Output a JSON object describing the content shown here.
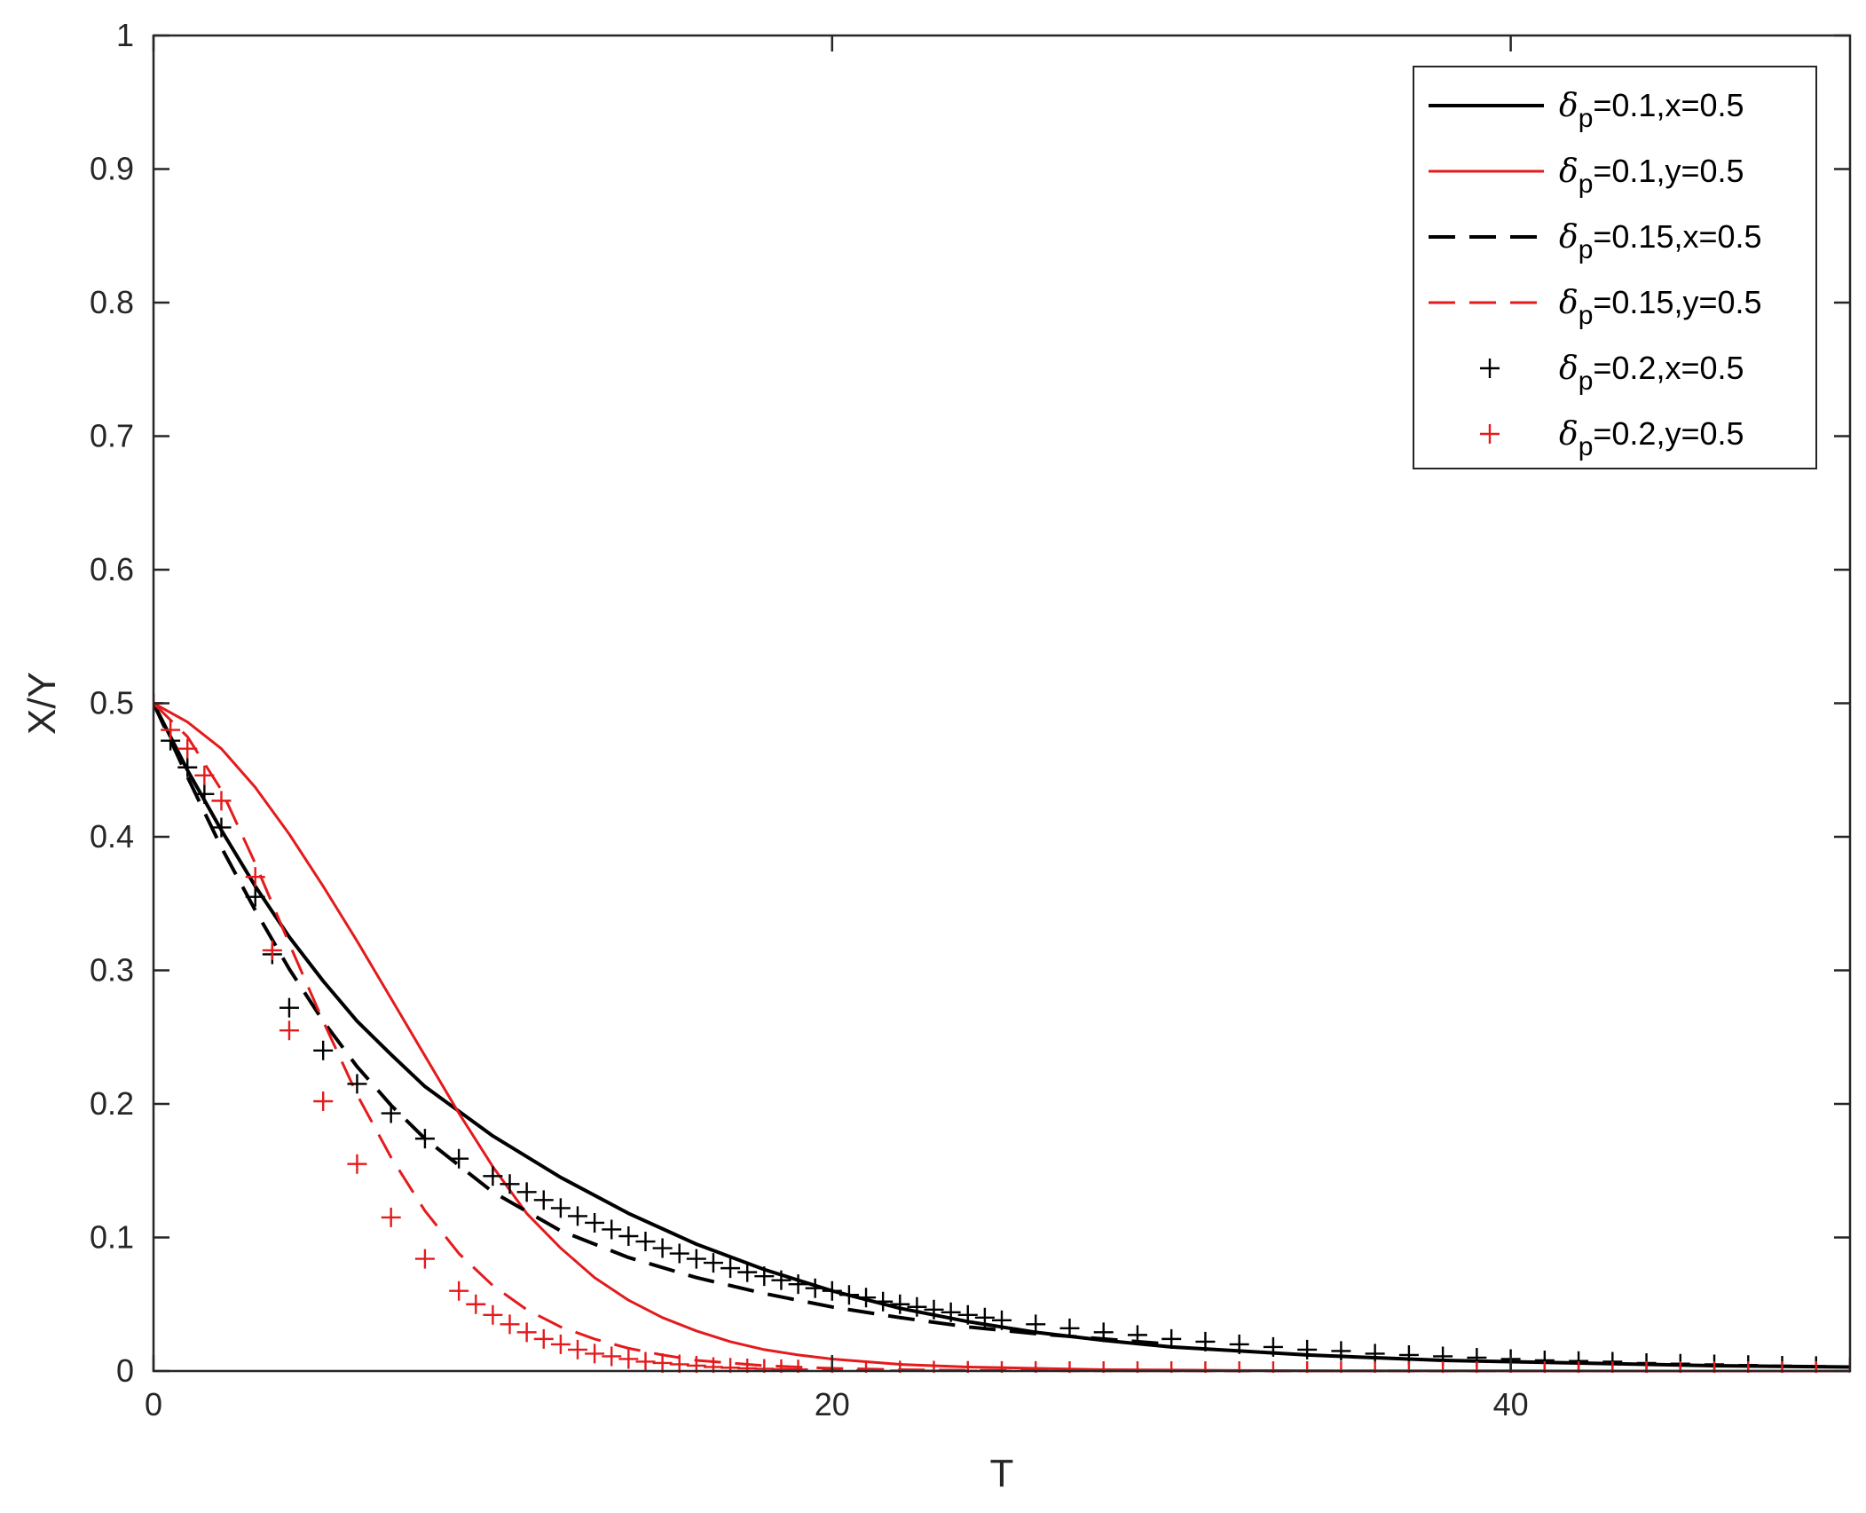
{
  "chart_data": {
    "type": "line",
    "xlabel": "T",
    "ylabel": "X/Y",
    "xlim": [
      0,
      50
    ],
    "ylim": [
      0,
      1
    ],
    "xticks": [
      0,
      20,
      40
    ],
    "yticks": [
      0,
      0.1,
      0.2,
      0.3,
      0.4,
      0.5,
      0.6,
      0.7,
      0.8,
      0.9,
      1
    ],
    "xtick_labels": [
      "0",
      "20",
      "40"
    ],
    "ytick_labels": [
      "0",
      "0.1",
      "0.2",
      "0.3",
      "0.4",
      "0.5",
      "0.6",
      "0.7",
      "0.8",
      "0.9",
      "1"
    ],
    "grid": false,
    "legend_position": "top-right",
    "series": [
      {
        "name": "δp=0.1,x=0.5",
        "legend_symbol": "δ",
        "legend_sub": "p",
        "legend_rest": "=0.1,x=0.5",
        "color": "#000000",
        "style": "solid",
        "x": [
          0,
          1,
          2,
          3,
          4,
          5,
          6,
          7,
          8,
          10,
          12,
          14,
          16,
          18,
          20,
          22,
          24,
          26,
          28,
          30,
          32,
          34,
          36,
          38,
          40,
          42,
          44,
          46,
          48,
          50
        ],
        "y": [
          0.5,
          0.45,
          0.405,
          0.363,
          0.325,
          0.292,
          0.262,
          0.237,
          0.213,
          0.176,
          0.145,
          0.118,
          0.095,
          0.076,
          0.06,
          0.047,
          0.037,
          0.029,
          0.023,
          0.018,
          0.015,
          0.012,
          0.01,
          0.008,
          0.007,
          0.006,
          0.005,
          0.004,
          0.0035,
          0.003
        ]
      },
      {
        "name": "δp=0.1,y=0.5",
        "legend_symbol": "δ",
        "legend_sub": "p",
        "legend_rest": "=0.1,y=0.5",
        "color": "#e41a1c",
        "style": "solid",
        "x": [
          0,
          1,
          2,
          3,
          4,
          5,
          6,
          7,
          8,
          9,
          10,
          11,
          12,
          13,
          14,
          15,
          16,
          17,
          18,
          19,
          20,
          22,
          24,
          26,
          28,
          30,
          32,
          35,
          40,
          45,
          50
        ],
        "y": [
          0.5,
          0.486,
          0.466,
          0.437,
          0.402,
          0.363,
          0.322,
          0.279,
          0.236,
          0.193,
          0.153,
          0.118,
          0.092,
          0.07,
          0.053,
          0.04,
          0.03,
          0.022,
          0.016,
          0.012,
          0.009,
          0.005,
          0.003,
          0.002,
          0.001,
          0.0007,
          0.0004,
          0.0002,
          0.0001,
          0.0,
          0.0
        ]
      },
      {
        "name": "δp=0.15,x=0.5",
        "legend_symbol": "δ",
        "legend_sub": "p",
        "legend_rest": "=0.15,x=0.5",
        "color": "#000000",
        "style": "dashed",
        "x": [
          0,
          1,
          2,
          3,
          4,
          5,
          6,
          7,
          8,
          10,
          12,
          14,
          16,
          18,
          20,
          22,
          24,
          26,
          28,
          30
        ],
        "y": [
          0.5,
          0.445,
          0.392,
          0.345,
          0.301,
          0.262,
          0.228,
          0.199,
          0.174,
          0.134,
          0.105,
          0.085,
          0.07,
          0.058,
          0.048,
          0.04,
          0.033,
          0.028,
          0.024,
          0.02
        ]
      },
      {
        "name": "δp=0.15,y=0.5",
        "legend_symbol": "δ",
        "legend_sub": "p",
        "legend_rest": "=0.15,y=0.5",
        "color": "#e41a1c",
        "style": "dashed",
        "x": [
          0,
          1,
          2,
          3,
          4,
          5,
          6,
          7,
          8,
          9,
          10,
          11,
          12,
          13,
          14,
          15,
          16,
          18,
          20,
          22,
          25,
          30,
          40,
          50
        ],
        "y": [
          0.5,
          0.475,
          0.435,
          0.38,
          0.32,
          0.262,
          0.207,
          0.16,
          0.12,
          0.088,
          0.064,
          0.046,
          0.033,
          0.024,
          0.017,
          0.012,
          0.008,
          0.004,
          0.002,
          0.001,
          0.0004,
          0.0001,
          0.0,
          0.0
        ]
      },
      {
        "name": "δp=0.2,x=0.5",
        "legend_symbol": "δ",
        "legend_sub": "p",
        "legend_rest": "=0.2,x=0.5",
        "color": "#000000",
        "style": "markers",
        "x": [
          0,
          0.5,
          1,
          1.5,
          2,
          3,
          3.5,
          4,
          5,
          6,
          7,
          8,
          9,
          10,
          10.5,
          11,
          11.5,
          12,
          12.5,
          13,
          13.5,
          14,
          14.5,
          15,
          15.5,
          16,
          16.5,
          17,
          17.5,
          18,
          18.5,
          19,
          19.5,
          20,
          20.5,
          21,
          21.5,
          22,
          22.5,
          23,
          23.5,
          24,
          24.5,
          25,
          26,
          27,
          28,
          29,
          30,
          31,
          32,
          33,
          34,
          35,
          36,
          37,
          38,
          39,
          40,
          41,
          42,
          43,
          44,
          45,
          46,
          47,
          48,
          49,
          50
        ],
        "y": [
          0.5,
          0.472,
          0.452,
          0.432,
          0.407,
          0.355,
          0.312,
          0.272,
          0.24,
          0.215,
          0.193,
          0.174,
          0.159,
          0.146,
          0.14,
          0.134,
          0.128,
          0.122,
          0.116,
          0.111,
          0.106,
          0.101,
          0.097,
          0.092,
          0.088,
          0.084,
          0.081,
          0.077,
          0.074,
          0.071,
          0.068,
          0.065,
          0.062,
          0.06,
          0.057,
          0.055,
          0.052,
          0.05,
          0.048,
          0.046,
          0.044,
          0.042,
          0.04,
          0.038,
          0.035,
          0.032,
          0.029,
          0.027,
          0.024,
          0.022,
          0.02,
          0.018,
          0.016,
          0.015,
          0.013,
          0.012,
          0.011,
          0.01,
          0.009,
          0.008,
          0.0075,
          0.007,
          0.006,
          0.0055,
          0.005,
          0.0045,
          0.004,
          0.0037,
          0.0033
        ]
      },
      {
        "name": "δp=0.2,y=0.5",
        "legend_symbol": "δ",
        "legend_sub": "p",
        "legend_rest": "=0.2,y=0.5",
        "color": "#e41a1c",
        "style": "markers",
        "x": [
          0,
          0.5,
          1,
          1.5,
          2,
          3,
          3.5,
          4,
          5,
          6,
          7,
          8,
          9,
          9.5,
          10,
          10.5,
          11,
          11.5,
          12,
          12.5,
          13,
          13.5,
          14,
          14.5,
          15,
          15.5,
          16,
          16.5,
          17,
          17.5,
          18,
          18.5,
          19,
          20,
          21,
          22,
          23,
          24,
          25,
          26,
          27,
          28,
          29,
          30,
          31,
          32,
          33,
          34,
          35,
          36,
          37,
          38,
          39,
          40,
          41,
          42,
          43,
          44,
          45,
          46,
          47,
          48,
          49,
          50
        ],
        "y": [
          0.5,
          0.48,
          0.466,
          0.446,
          0.427,
          0.37,
          0.315,
          0.255,
          0.202,
          0.155,
          0.115,
          0.084,
          0.06,
          0.05,
          0.042,
          0.035,
          0.029,
          0.024,
          0.02,
          0.016,
          0.013,
          0.011,
          0.009,
          0.007,
          0.006,
          0.005,
          0.004,
          0.003,
          0.0025,
          0.002,
          0.0017,
          0.0014,
          0.0012,
          0.0009,
          0.0006,
          0.0004,
          0.0003,
          0.0002,
          0.0001,
          0.0001,
          0.0,
          0.0,
          0.0,
          0.0,
          0.0,
          0.0,
          0.0,
          0.0,
          0.0,
          0.0,
          0.0,
          0.0,
          0.0,
          0.0,
          0.0,
          0.0,
          0.0,
          0.0,
          0.0,
          0.0,
          0.0,
          0.0,
          0.0,
          0.0
        ]
      }
    ]
  }
}
